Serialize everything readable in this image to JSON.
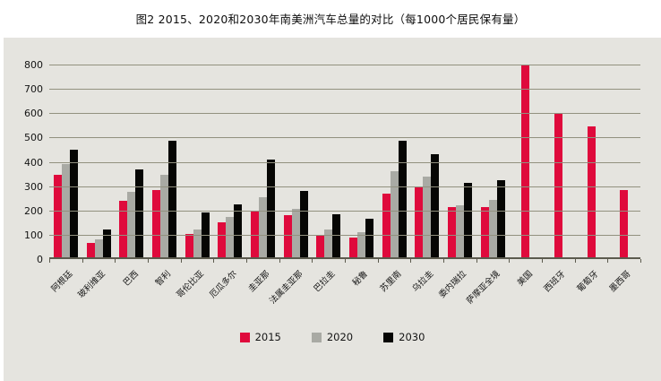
{
  "chart_data": {
    "type": "bar",
    "title": "图2 2015、2020和2030年南美洲汽车总量的对比（每1000个居民保有量）",
    "categories": [
      "阿根廷",
      "玻利维亚",
      "巴西",
      "智利",
      "哥伦比亚",
      "厄瓜多尔",
      "圭亚那",
      "法属圭亚那",
      "巴拉圭",
      "秘鲁",
      "苏里南",
      "乌拉圭",
      "委内瑞拉",
      "萨摩亚全境",
      "美国",
      "西班牙",
      "葡萄牙",
      "墨西哥"
    ],
    "series": [
      {
        "name": "2015",
        "color": "#df0a3c",
        "values": [
          345,
          68,
          240,
          285,
          105,
          150,
          200,
          180,
          98,
          88,
          270,
          295,
          215,
          215,
          800,
          600,
          545,
          285
        ]
      },
      {
        "name": "2020",
        "color": "#a9aaa4",
        "values": [
          390,
          80,
          275,
          345,
          120,
          175,
          255,
          205,
          120,
          110,
          360,
          340,
          220,
          245,
          null,
          null,
          null,
          null
        ]
      },
      {
        "name": "2030",
        "color": "#060604",
        "values": [
          448,
          120,
          370,
          485,
          190,
          225,
          410,
          280,
          185,
          165,
          485,
          430,
          315,
          325,
          null,
          null,
          null,
          null
        ]
      }
    ],
    "xlabel": "",
    "ylabel": "",
    "ylim": [
      0,
      800
    ],
    "ytick_step": 100,
    "grid": true,
    "legend_position": "bottom",
    "plot_background": "#e5e4df",
    "gridline_color": "#92917f"
  }
}
